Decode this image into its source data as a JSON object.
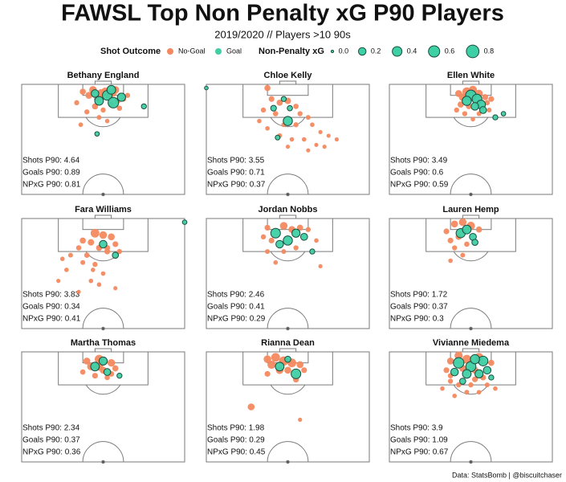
{
  "title": "FAWSL Top Non Penalty xG P90 Players",
  "subtitle": "2019/2020 // Players >10 90s",
  "legend": {
    "outcome_title": "Shot Outcome",
    "size_title": "Non-Penalty xG",
    "size_values": [
      {
        "value": 0,
        "label": "0.0"
      },
      0.2,
      0.4,
      0.6,
      0.8
    ]
  },
  "source": "Data: StatsBomb | @biscuitchaser",
  "chart_data": [
    {
      "type": "scatter",
      "title": "Bethany England",
      "xlim": [
        0,
        80
      ],
      "ylim": [
        0,
        60
      ],
      "stats": [
        "Shots P90: 4.64",
        "Goals P90: 0.89",
        "NPxG P90: 0.81"
      ],
      "series": [
        {
          "name": "No-Goal",
          "color": "#f4895f",
          "x": [
            30,
            33,
            35,
            37,
            39,
            41,
            43,
            45,
            47,
            36,
            40,
            44,
            48,
            32,
            38,
            42,
            50,
            27,
            46,
            52,
            29
          ],
          "y": [
            4,
            6,
            3,
            8,
            5,
            4,
            7,
            5,
            9,
            12,
            14,
            11,
            13,
            15,
            18,
            20,
            8,
            10,
            3,
            6,
            22
          ],
          "size": [
            0.1,
            0.15,
            0.2,
            0.1,
            0.3,
            0.25,
            0.15,
            0.1,
            0.08,
            0.1,
            0.05,
            0.08,
            0.06,
            0.05,
            0.04,
            0.03,
            0.06,
            0.05,
            0.2,
            0.05,
            0.03
          ]
        },
        {
          "name": "Goal",
          "color": "#3fcfa5",
          "edgecolor": "#1b4d3e",
          "x": [
            42,
            45,
            38,
            49,
            36,
            44,
            60,
            37
          ],
          "y": [
            6,
            10,
            9,
            7,
            5,
            3,
            12,
            27
          ],
          "size": [
            0.4,
            0.5,
            0.3,
            0.25,
            0.2,
            0.3,
            0.05,
            0.03
          ]
        }
      ]
    },
    {
      "type": "scatter",
      "title": "Chloe Kelly",
      "xlim": [
        0,
        80
      ],
      "ylim": [
        0,
        60
      ],
      "stats": [
        "Shots P90: 3.55",
        "Goals P90: 0.71",
        "NPxG P90: 0.37"
      ],
      "series": [
        {
          "name": "No-Goal",
          "color": "#f4895f",
          "x": [
            30,
            32,
            36,
            40,
            44,
            28,
            34,
            46,
            50,
            38,
            44,
            52,
            30,
            56,
            36,
            42,
            48,
            60,
            64,
            40,
            50,
            54,
            26,
            58
          ],
          "y": [
            2,
            8,
            10,
            9,
            12,
            14,
            16,
            16,
            18,
            22,
            22,
            22,
            24,
            26,
            28,
            30,
            30,
            28,
            30,
            34,
            36,
            33,
            20,
            34
          ],
          "size": [
            0.1,
            0.08,
            0.1,
            0.12,
            0.06,
            0.05,
            0.06,
            0.05,
            0.04,
            0.04,
            0.05,
            0.03,
            0.03,
            0.02,
            0.04,
            0.03,
            0.03,
            0.02,
            0.02,
            0.02,
            0.02,
            0.02,
            0.03,
            0.02
          ]
        },
        {
          "name": "Goal",
          "color": "#3fcfa5",
          "edgecolor": "#1b4d3e",
          "x": [
            40,
            33,
            41,
            35,
            38,
            0
          ],
          "y": [
            20,
            13,
            13,
            29,
            8,
            2
          ],
          "size": [
            0.35,
            0.08,
            0.06,
            0.04,
            0.05,
            0.01
          ]
        }
      ]
    },
    {
      "type": "scatter",
      "title": "Ellen White",
      "xlim": [
        0,
        80
      ],
      "ylim": [
        0,
        60
      ],
      "stats": [
        "Shots P90: 3.49",
        "Goals P90: 0.6",
        "NPxG P90: 0.59"
      ],
      "series": [
        {
          "name": "No-Goal",
          "color": "#f4895f",
          "x": [
            34,
            36,
            38,
            41,
            44,
            47,
            35,
            39,
            48,
            50,
            37,
            44,
            41,
            33,
            49
          ],
          "y": [
            5,
            7,
            4,
            3,
            5,
            7,
            11,
            12,
            10,
            8,
            16,
            16,
            19,
            14,
            14
          ],
          "size": [
            0.15,
            0.2,
            0.3,
            0.25,
            0.2,
            0.1,
            0.1,
            0.08,
            0.06,
            0.08,
            0.05,
            0.04,
            0.03,
            0.05,
            0.04
          ]
        },
        {
          "name": "Goal",
          "color": "#3fcfa5",
          "edgecolor": "#1b4d3e",
          "x": [
            40,
            43,
            38,
            45,
            42,
            46,
            52,
            56
          ],
          "y": [
            6,
            8,
            9,
            11,
            12,
            14,
            18,
            16
          ],
          "size": [
            0.5,
            0.4,
            0.35,
            0.3,
            0.2,
            0.15,
            0.05,
            0.03
          ]
        }
      ]
    },
    {
      "type": "scatter",
      "title": "Fara Williams",
      "xlim": [
        0,
        80
      ],
      "ylim": [
        0,
        60
      ],
      "stats": [
        "Shots P90: 3.83",
        "Goals P90: 0.34",
        "NPxG P90: 0.41"
      ],
      "series": [
        {
          "name": "No-Goal",
          "color": "#f4895f",
          "x": [
            36,
            40,
            30,
            34,
            44,
            46,
            28,
            38,
            42,
            24,
            32,
            48,
            20,
            30,
            36,
            22,
            40,
            18,
            34,
            38,
            46,
            28,
            42,
            35
          ],
          "y": [
            8,
            9,
            12,
            13,
            10,
            14,
            16,
            16,
            18,
            20,
            20,
            18,
            22,
            24,
            25,
            28,
            30,
            34,
            34,
            36,
            38,
            40,
            16,
            28
          ],
          "size": [
            0.3,
            0.2,
            0.1,
            0.12,
            0.15,
            0.08,
            0.06,
            0.1,
            0.08,
            0.04,
            0.06,
            0.05,
            0.03,
            0.04,
            0.05,
            0.03,
            0.03,
            0.02,
            0.03,
            0.03,
            0.02,
            0.02,
            0.08,
            0.03
          ]
        },
        {
          "name": "Goal",
          "color": "#3fcfa5",
          "edgecolor": "#1b4d3e",
          "x": [
            40,
            46,
            80
          ],
          "y": [
            14,
            20,
            2
          ],
          "size": [
            0.2,
            0.1,
            0.03
          ]
        }
      ]
    },
    {
      "type": "scatter",
      "title": "Jordan Nobbs",
      "xlim": [
        0,
        80
      ],
      "ylim": [
        0,
        60
      ],
      "stats": [
        "Shots P90: 2.46",
        "Goals P90: 0.41",
        "NPxG P90: 0.29"
      ],
      "series": [
        {
          "name": "No-Goal",
          "color": "#f4895f",
          "x": [
            30,
            38,
            42,
            46,
            32,
            50,
            28,
            44,
            38,
            54,
            30,
            56,
            34
          ],
          "y": [
            5,
            4,
            6,
            5,
            12,
            6,
            10,
            16,
            18,
            12,
            18,
            26,
            24
          ],
          "size": [
            0.08,
            0.2,
            0.15,
            0.1,
            0.08,
            0.05,
            0.05,
            0.05,
            0.04,
            0.03,
            0.04,
            0.02,
            0.03
          ]
        },
        {
          "name": "Goal",
          "color": "#3fcfa5",
          "edgecolor": "#1b4d3e",
          "x": [
            34,
            40,
            44,
            36,
            48,
            52
          ],
          "y": [
            8,
            12,
            8,
            14,
            10,
            18
          ],
          "size": [
            0.4,
            0.35,
            0.25,
            0.2,
            0.15,
            0.05
          ]
        }
      ]
    },
    {
      "type": "scatter",
      "title": "Lauren Hemp",
      "xlim": [
        0,
        80
      ],
      "ylim": [
        0,
        60
      ],
      "stats": [
        "Shots P90: 1.72",
        "Goals P90: 0.37",
        "NPxG P90: 0.3"
      ],
      "series": [
        {
          "name": "No-Goal",
          "color": "#f4895f",
          "x": [
            32,
            36,
            40,
            34,
            30,
            38,
            32,
            28,
            44,
            36,
            30
          ],
          "y": [
            3,
            2,
            4,
            10,
            12,
            14,
            16,
            7,
            6,
            20,
            23
          ],
          "size": [
            0.15,
            0.2,
            0.25,
            0.1,
            0.08,
            0.06,
            0.05,
            0.08,
            0.1,
            0.04,
            0.03
          ]
        },
        {
          "name": "Goal",
          "color": "#3fcfa5",
          "edgecolor": "#1b4d3e",
          "x": [
            35,
            38,
            41,
            42
          ],
          "y": [
            8,
            6,
            10,
            13
          ],
          "size": [
            0.35,
            0.3,
            0.15,
            0.1
          ]
        }
      ]
    },
    {
      "type": "scatter",
      "title": "Martha Thomas",
      "xlim": [
        0,
        80
      ],
      "ylim": [
        0,
        60
      ],
      "stats": [
        "Shots P90: 2.34",
        "Goals P90: 0.37",
        "NPxG P90: 0.36"
      ],
      "series": [
        {
          "name": "No-Goal",
          "color": "#f4895f",
          "x": [
            32,
            34,
            38,
            44,
            46,
            40,
            30,
            36,
            42,
            38,
            44
          ],
          "y": [
            5,
            8,
            4,
            6,
            9,
            10,
            11,
            13,
            14,
            8,
            12
          ],
          "size": [
            0.15,
            0.2,
            0.3,
            0.2,
            0.1,
            0.15,
            0.06,
            0.08,
            0.06,
            0.25,
            0.08
          ]
        },
        {
          "name": "Goal",
          "color": "#3fcfa5",
          "edgecolor": "#1b4d3e",
          "x": [
            36,
            40,
            42,
            48
          ],
          "y": [
            8,
            5,
            11,
            13
          ],
          "size": [
            0.3,
            0.25,
            0.15,
            0.05
          ]
        }
      ]
    },
    {
      "type": "scatter",
      "title": "Rianna Dean",
      "xlim": [
        0,
        80
      ],
      "ylim": [
        0,
        60
      ],
      "stats": [
        "Shots P90: 1.98",
        "Goals P90: 0.29",
        "NPxG P90: 0.45"
      ],
      "series": [
        {
          "name": "No-Goal",
          "color": "#f4895f",
          "x": [
            30,
            32,
            34,
            38,
            42,
            46,
            36,
            40,
            48,
            30,
            44,
            22,
            46
          ],
          "y": [
            4,
            7,
            3,
            5,
            6,
            7,
            10,
            10,
            10,
            12,
            15,
            30,
            37
          ],
          "size": [
            0.2,
            0.25,
            0.3,
            0.35,
            0.3,
            0.15,
            0.2,
            0.15,
            0.08,
            0.08,
            0.1,
            0.15,
            0.02
          ]
        },
        {
          "name": "Goal",
          "color": "#3fcfa5",
          "edgecolor": "#1b4d3e",
          "x": [
            44,
            36,
            40
          ],
          "y": [
            12,
            8,
            4
          ],
          "size": [
            0.4,
            0.3,
            0.1
          ]
        }
      ]
    },
    {
      "type": "scatter",
      "title": "Vivianne Miedema",
      "xlim": [
        0,
        80
      ],
      "ylim": [
        0,
        60
      ],
      "stats": [
        "Shots P90: 3.9",
        "Goals P90: 1.09",
        "NPxG P90: 0.67"
      ],
      "series": [
        {
          "name": "No-Goal",
          "color": "#f4895f",
          "x": [
            30,
            34,
            38,
            44,
            50,
            28,
            36,
            42,
            46,
            30,
            34,
            40,
            48,
            26,
            38,
            44,
            32,
            52,
            30,
            42
          ],
          "y": [
            5,
            2,
            4,
            3,
            6,
            10,
            9,
            10,
            14,
            16,
            18,
            18,
            18,
            20,
            22,
            22,
            24,
            20,
            13,
            15
          ],
          "size": [
            0.15,
            0.25,
            0.3,
            0.3,
            0.1,
            0.08,
            0.15,
            0.15,
            0.08,
            0.05,
            0.05,
            0.05,
            0.04,
            0.03,
            0.04,
            0.03,
            0.03,
            0.03,
            0.06,
            0.08
          ]
        },
        {
          "name": "Goal",
          "color": "#3fcfa5",
          "edgecolor": "#1b4d3e",
          "x": [
            34,
            40,
            46,
            38,
            44,
            32,
            48,
            36,
            42,
            50
          ],
          "y": [
            6,
            8,
            5,
            12,
            12,
            11,
            10,
            16,
            4,
            14
          ],
          "size": [
            0.5,
            0.45,
            0.4,
            0.3,
            0.25,
            0.2,
            0.2,
            0.1,
            0.35,
            0.05
          ]
        }
      ]
    }
  ]
}
